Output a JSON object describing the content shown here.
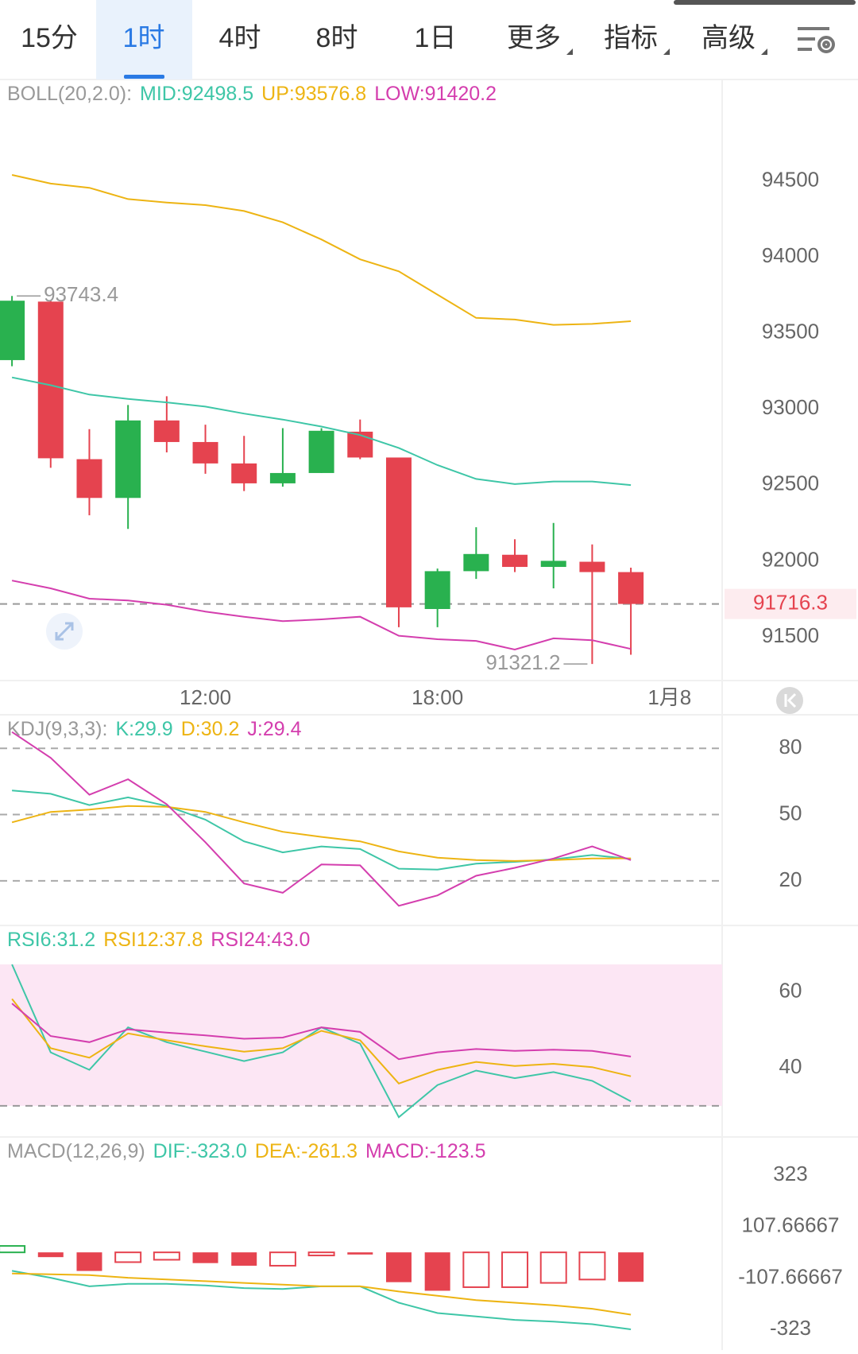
{
  "tabs": [
    {
      "label": "15分"
    },
    {
      "label": "1时"
    },
    {
      "label": "4时"
    },
    {
      "label": "8时"
    },
    {
      "label": "1日"
    },
    {
      "label": "更多",
      "dropdown": true
    },
    {
      "label": "指标",
      "dropdown": true
    },
    {
      "label": "高级",
      "dropdown": true
    }
  ],
  "active_tab": 1,
  "chart_data": [
    {
      "type": "candlestick",
      "label": "BOLL(20,2.0):",
      "x": [
        0,
        1,
        2,
        3,
        4,
        5,
        6,
        7,
        8,
        9,
        10,
        11,
        12,
        13,
        14,
        15,
        16
      ],
      "open": [
        93321,
        93706,
        92669,
        92414,
        92924,
        92782,
        92641,
        92510,
        92578,
        92850,
        92680,
        91683,
        91932,
        92040,
        91960,
        91994,
        91926
      ],
      "high": [
        93743.4,
        93710,
        92867,
        93026,
        93083,
        92896,
        92822,
        92873,
        92873,
        92930,
        92680,
        91949,
        92221,
        92142,
        92249,
        92108,
        91955
      ],
      "low": [
        93281,
        92612,
        92300,
        92210,
        92714,
        92573,
        92459,
        92488,
        92578,
        92669,
        91563,
        91563,
        91881,
        91926,
        91819,
        91321.2,
        91382
      ],
      "close": [
        93712,
        92675,
        92414,
        92924,
        92782,
        92641,
        92510,
        92578,
        92856,
        92680,
        91694,
        91932,
        92045,
        91960,
        92000,
        91926,
        91716.3
      ],
      "up_color": "#29b14f",
      "down_color": "#e5434f",
      "series": [
        {
          "name": "MID:92498.5",
          "color": "#3ec6a7",
          "values": [
            93207,
            93156,
            93094,
            93066,
            93043,
            93015,
            92969,
            92930,
            92884,
            92828,
            92743,
            92630,
            92539,
            92505,
            92522,
            92522,
            92498.5
          ]
        },
        {
          "name": "UP:93576.8",
          "color": "#edb413",
          "values": [
            94540,
            94483,
            94455,
            94381,
            94358,
            94341,
            94302,
            94228,
            94115,
            93984,
            93905,
            93752,
            93599,
            93588,
            93553,
            93559,
            93576.8
          ]
        },
        {
          "name": "LOW:91420.2",
          "color": "#d43eae",
          "values": [
            91870,
            91819,
            91751,
            91739,
            91711,
            91666,
            91632,
            91603,
            91615,
            91632,
            91507,
            91484,
            91473,
            91416,
            91490,
            91478,
            91420.2
          ]
        }
      ],
      "ylim": [
        91212,
        95152
      ],
      "yticks": [
        94500,
        94000,
        93500,
        93000,
        92500,
        92000,
        91500
      ],
      "xlim": [
        -0.31,
        18.36
      ],
      "xticks": [
        {
          "value": 5,
          "label": "12:00"
        },
        {
          "value": 11,
          "label": "18:00"
        },
        {
          "value": 17,
          "label": "1月8"
        }
      ],
      "last_price_line": true,
      "extreme_labels": true
    },
    {
      "type": "line",
      "label": "KDJ(9,3,3):",
      "series": [
        {
          "name": "K:29.9",
          "color": "#3ec6a7",
          "values": [
            60.9,
            59.4,
            54.3,
            57.8,
            53.9,
            47.7,
            37.9,
            32.9,
            35.6,
            34.4,
            25.5,
            25.1,
            27.8,
            28.6,
            29.7,
            31.7,
            29.9
          ]
        },
        {
          "name": "D:30.2",
          "color": "#edb413",
          "values": [
            46.5,
            51.2,
            52.3,
            53.9,
            53.5,
            51.2,
            46.5,
            42.2,
            39.9,
            37.9,
            33.3,
            30.5,
            29.4,
            29.0,
            29.4,
            30.1,
            30.2
          ]
        },
        {
          "name": "J:29.4",
          "color": "#d43eae",
          "values": [
            87.4,
            75.7,
            59,
            66,
            54.7,
            37.5,
            18.8,
            14.6,
            27.4,
            27,
            8.7,
            13.4,
            22.3,
            25.9,
            30.1,
            35.6,
            29.4
          ]
        }
      ],
      "ylim": [
        -0.2,
        95.2
      ],
      "yticks": [
        80,
        50,
        20
      ],
      "grid": "dashed"
    },
    {
      "type": "line",
      "series": [
        {
          "name": "RSI6:31.2",
          "color": "#3ec6a7",
          "values": [
            67.3,
            44.1,
            39.5,
            50.7,
            46.8,
            44.3,
            41.8,
            44.1,
            50.7,
            46.4,
            27,
            35.5,
            39.3,
            37.3,
            38.9,
            36.6,
            31.2
          ]
        },
        {
          "name": "RSI12:37.8",
          "color": "#edb413",
          "values": [
            58.2,
            45.2,
            42.7,
            49.1,
            47.3,
            45.7,
            44.3,
            45.2,
            49.8,
            47.3,
            35.9,
            39.5,
            41.6,
            40.5,
            41.1,
            40.2,
            37.8
          ]
        },
        {
          "name": "RSI24:43.0",
          "color": "#d43eae",
          "values": [
            57,
            48.4,
            46.8,
            50.2,
            49.3,
            48.6,
            47.7,
            48,
            50.7,
            49.5,
            42.3,
            44.1,
            45,
            44.5,
            44.8,
            44.5,
            43.0
          ]
        }
      ],
      "ylim": [
        21.8,
        67.3
      ],
      "yticks": [
        60,
        40
      ],
      "shade_from": 30,
      "shade_color": "#fce6f4"
    },
    {
      "type": "macd",
      "label": "MACD(12,26,9)",
      "series": [
        {
          "name": "DIF:-323.0",
          "color": "#3ec6a7",
          "values": [
            -77.6,
            -106.5,
            -142.6,
            -131.7,
            -131.7,
            -138.9,
            -149.8,
            -153.4,
            -142.6,
            -142.6,
            -211.1,
            -254.4,
            -268.9,
            -283.3,
            -290.5,
            -301.3,
            -323.0
          ]
        },
        {
          "name": "DEA:-261.3",
          "color": "#edb413",
          "values": [
            -88.4,
            -92,
            -95.6,
            -106.5,
            -113.7,
            -120.9,
            -128.1,
            -135.3,
            -142.6,
            -142.6,
            -164.2,
            -182.3,
            -200.3,
            -211.1,
            -222,
            -236.4,
            -261.3
          ]
        }
      ],
      "histogram": {
        "name": "MACD:-123.5",
        "color": "#d43eae",
        "up_color": "#29b14f",
        "down_color": "#e5434f",
        "values": [
          27,
          -20,
          -78,
          -41,
          -31,
          -45,
          -56,
          -56,
          -13,
          -9,
          -125,
          -161,
          -146,
          -146,
          -128,
          -114,
          -123.5
        ],
        "fills": [
          "hollow",
          "solid",
          "solid",
          "hollow",
          "hollow",
          "solid",
          "solid",
          "hollow",
          "hollow",
          "solid",
          "solid",
          "solid",
          "hollow",
          "hollow",
          "hollow",
          "hollow",
          "solid"
        ]
      },
      "ylim": [
        -409.6,
        359
      ],
      "yticks": [
        323,
        107.66667,
        -107.66667,
        -323
      ]
    }
  ]
}
